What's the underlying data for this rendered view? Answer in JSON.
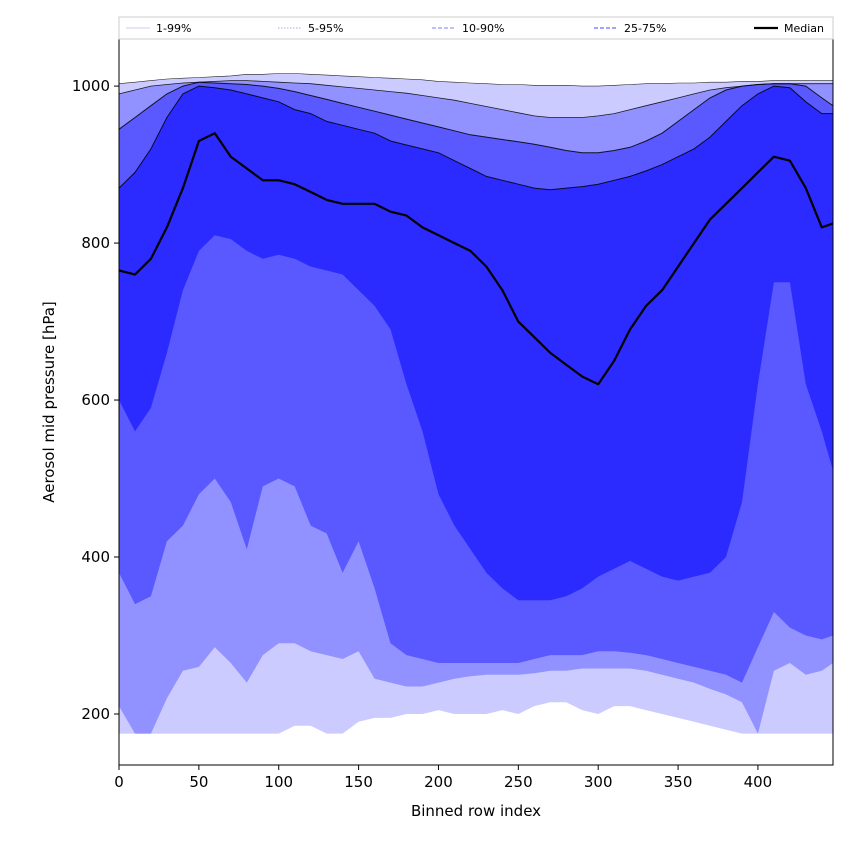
{
  "chart_data": {
    "type": "area",
    "title": "",
    "xlabel": "Binned row index",
    "ylabel": "Aerosol mid pressure [hPa]",
    "xlim": [
      0,
      447
    ],
    "ylim": [
      135,
      1060
    ],
    "x_ticks": [
      0,
      50,
      100,
      150,
      200,
      250,
      300,
      350,
      400
    ],
    "y_ticks": [
      200,
      400,
      600,
      800,
      1000
    ],
    "grid": false,
    "legend_position": "top",
    "colors": {
      "band_1_99": "#cbcbff",
      "band_5_95": "#9191ff",
      "band_10_90": "#5959ff",
      "band_25_75": "#2b2bff",
      "median": "#000000",
      "outline": "#000000"
    },
    "legend": [
      {
        "label": "1-99%",
        "style": "thin-solid"
      },
      {
        "label": "5-95%",
        "style": "thin-dotted"
      },
      {
        "label": "10-90%",
        "style": "dashed"
      },
      {
        "label": "25-75%",
        "style": "dashed"
      },
      {
        "label": "Median",
        "style": "solid-bold"
      }
    ],
    "x": [
      0,
      10,
      20,
      30,
      40,
      50,
      60,
      70,
      80,
      90,
      100,
      110,
      120,
      130,
      140,
      150,
      160,
      170,
      180,
      190,
      200,
      210,
      220,
      230,
      240,
      250,
      260,
      270,
      280,
      290,
      300,
      310,
      320,
      330,
      340,
      350,
      360,
      370,
      380,
      390,
      400,
      410,
      420,
      430,
      440,
      447
    ],
    "bands": [
      {
        "name": "1-99%",
        "lower": [
          175,
          175,
          175,
          175,
          175,
          175,
          175,
          175,
          175,
          175,
          175,
          185,
          185,
          175,
          175,
          190,
          195,
          195,
          200,
          200,
          205,
          200,
          200,
          200,
          205,
          200,
          210,
          215,
          215,
          205,
          200,
          210,
          210,
          205,
          200,
          195,
          190,
          185,
          180,
          175,
          175,
          175,
          175,
          175,
          175,
          175
        ],
        "upper": [
          1003,
          1005,
          1007,
          1009,
          1010,
          1011,
          1012,
          1013,
          1015,
          1015,
          1016,
          1016,
          1015,
          1014,
          1013,
          1012,
          1011,
          1010,
          1009,
          1008,
          1006,
          1005,
          1004,
          1003,
          1002,
          1002,
          1001,
          1001,
          1001,
          1000,
          1000,
          1001,
          1002,
          1003,
          1003,
          1004,
          1004,
          1005,
          1005,
          1006,
          1006,
          1007,
          1007,
          1007,
          1007,
          1007
        ]
      },
      {
        "name": "5-95%",
        "lower": [
          210,
          175,
          175,
          220,
          255,
          260,
          285,
          265,
          240,
          275,
          290,
          290,
          280,
          275,
          270,
          280,
          245,
          240,
          235,
          235,
          240,
          245,
          248,
          250,
          250,
          250,
          252,
          255,
          255,
          258,
          258,
          258,
          258,
          255,
          250,
          245,
          240,
          232,
          225,
          215,
          175,
          255,
          265,
          250,
          255,
          265
        ]
      },
      {
        "name": "10-90%",
        "lower": [
          380,
          340,
          350,
          420,
          440,
          480,
          500,
          470,
          410,
          490,
          500,
          490,
          440,
          430,
          380,
          420,
          360,
          290,
          275,
          270,
          265,
          265,
          265,
          265,
          265,
          265,
          270,
          275,
          275,
          275,
          280,
          280,
          278,
          275,
          270,
          265,
          260,
          255,
          250,
          240,
          285,
          330,
          310,
          300,
          295,
          300
        ]
      },
      {
        "name": "25-75%",
        "lower": [
          600,
          560,
          590,
          660,
          740,
          790,
          810,
          805,
          790,
          780,
          785,
          780,
          770,
          765,
          760,
          740,
          720,
          690,
          620,
          560,
          480,
          440,
          410,
          380,
          360,
          345,
          345,
          345,
          350,
          360,
          375,
          385,
          395,
          385,
          375,
          370,
          375,
          380,
          400,
          470,
          620,
          750,
          750,
          620,
          560,
          510
        ],
        "upper": [
          870,
          890,
          920,
          960,
          990,
          1000,
          998,
          995,
          990,
          985,
          980,
          970,
          965,
          955,
          950,
          945,
          940,
          930,
          925,
          920,
          915,
          905,
          895,
          885,
          880,
          875,
          870,
          868,
          870,
          872,
          875,
          880,
          885,
          892,
          900,
          910,
          920,
          935,
          955,
          975,
          990,
          1000,
          998,
          980,
          965,
          965
        ]
      }
    ],
    "inner_edges": {
      "5-95%": [
        990,
        995,
        1000,
        1002,
        1004,
        1005,
        1006,
        1007,
        1007,
        1006,
        1005,
        1004,
        1003,
        1001,
        999,
        997,
        995,
        993,
        991,
        988,
        985,
        982,
        978,
        974,
        970,
        966,
        962,
        960,
        960,
        960,
        962,
        965,
        970,
        975,
        980,
        985,
        990,
        995,
        998,
        1000,
        1002,
        1003,
        1003,
        1003,
        1003,
        1003
      ],
      "10-90%": [
        945,
        960,
        975,
        990,
        1000,
        1005,
        1004,
        1003,
        1002,
        1000,
        997,
        993,
        988,
        983,
        978,
        973,
        968,
        963,
        958,
        953,
        948,
        943,
        938,
        935,
        932,
        929,
        926,
        922,
        918,
        915,
        915,
        918,
        922,
        930,
        940,
        955,
        970,
        985,
        995,
        1000,
        1002,
        1003,
        1003,
        1000,
        985,
        975
      ]
    },
    "median": [
      765,
      760,
      780,
      820,
      870,
      930,
      940,
      910,
      895,
      880,
      880,
      875,
      865,
      855,
      850,
      850,
      850,
      840,
      835,
      820,
      810,
      800,
      790,
      770,
      740,
      700,
      680,
      660,
      645,
      630,
      620,
      650,
      690,
      720,
      740,
      770,
      800,
      830,
      850,
      870,
      890,
      910,
      905,
      870,
      820,
      825
    ]
  }
}
